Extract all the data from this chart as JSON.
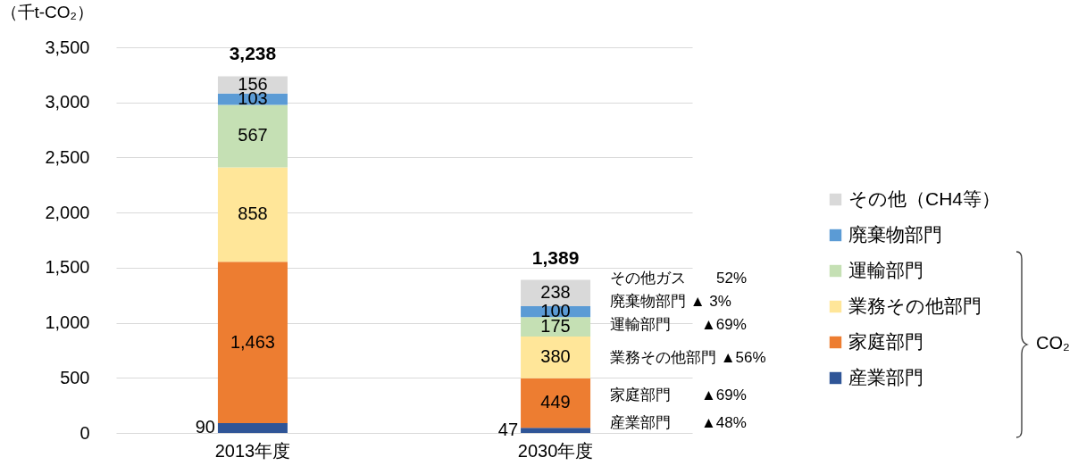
{
  "chart_data": {
    "type": "bar",
    "stacked": true,
    "ylabel": "（千t-CO₂）",
    "categories": [
      "2013年度",
      "2030年度"
    ],
    "series": [
      {
        "name": "産業部門",
        "color": "#2f5597",
        "values": [
          90,
          47
        ],
        "value_labels": [
          "90",
          "47"
        ]
      },
      {
        "name": "家庭部門",
        "color": "#ed7d31",
        "values": [
          1463,
          449
        ],
        "value_labels": [
          "1,463",
          "449"
        ]
      },
      {
        "name": "業務その他部門",
        "color": "#ffe699",
        "values": [
          858,
          380
        ],
        "value_labels": [
          "858",
          "380"
        ]
      },
      {
        "name": "運輸部門",
        "color": "#c5e0b4",
        "values": [
          567,
          175
        ],
        "value_labels": [
          "567",
          "175"
        ]
      },
      {
        "name": "廃棄物部門",
        "color": "#5b9bd5",
        "values": [
          103,
          100
        ],
        "value_labels": [
          "103",
          "100"
        ]
      },
      {
        "name": "その他（CH4等）",
        "color": "#d9d9d9",
        "values": [
          156,
          238
        ],
        "value_labels": [
          "156",
          "238"
        ]
      }
    ],
    "totals": [
      "3,238",
      "1,389"
    ],
    "ylim": [
      0,
      3500
    ],
    "yticks": [
      0,
      {
        "value": 500,
        "label": "500"
      },
      {
        "value": 1000,
        "label": "1,000"
      },
      {
        "value": 1500,
        "label": "1,500"
      },
      {
        "value": 2000,
        "label": "2,000"
      },
      {
        "value": 2500,
        "label": "2,500"
      },
      {
        "value": 3000,
        "label": "3,000"
      },
      {
        "value": 3500,
        "label": "3,500"
      }
    ],
    "grid": "y",
    "legend": "right",
    "annotations": [
      "その他ガス　　52%",
      "廃棄物部門 ▲ 3%",
      "運輸部門　　▲69%",
      "業務その他部門 ▲56%",
      "家庭部門　　▲69%",
      "産業部門　　▲48%",
      "CO₂"
    ]
  }
}
